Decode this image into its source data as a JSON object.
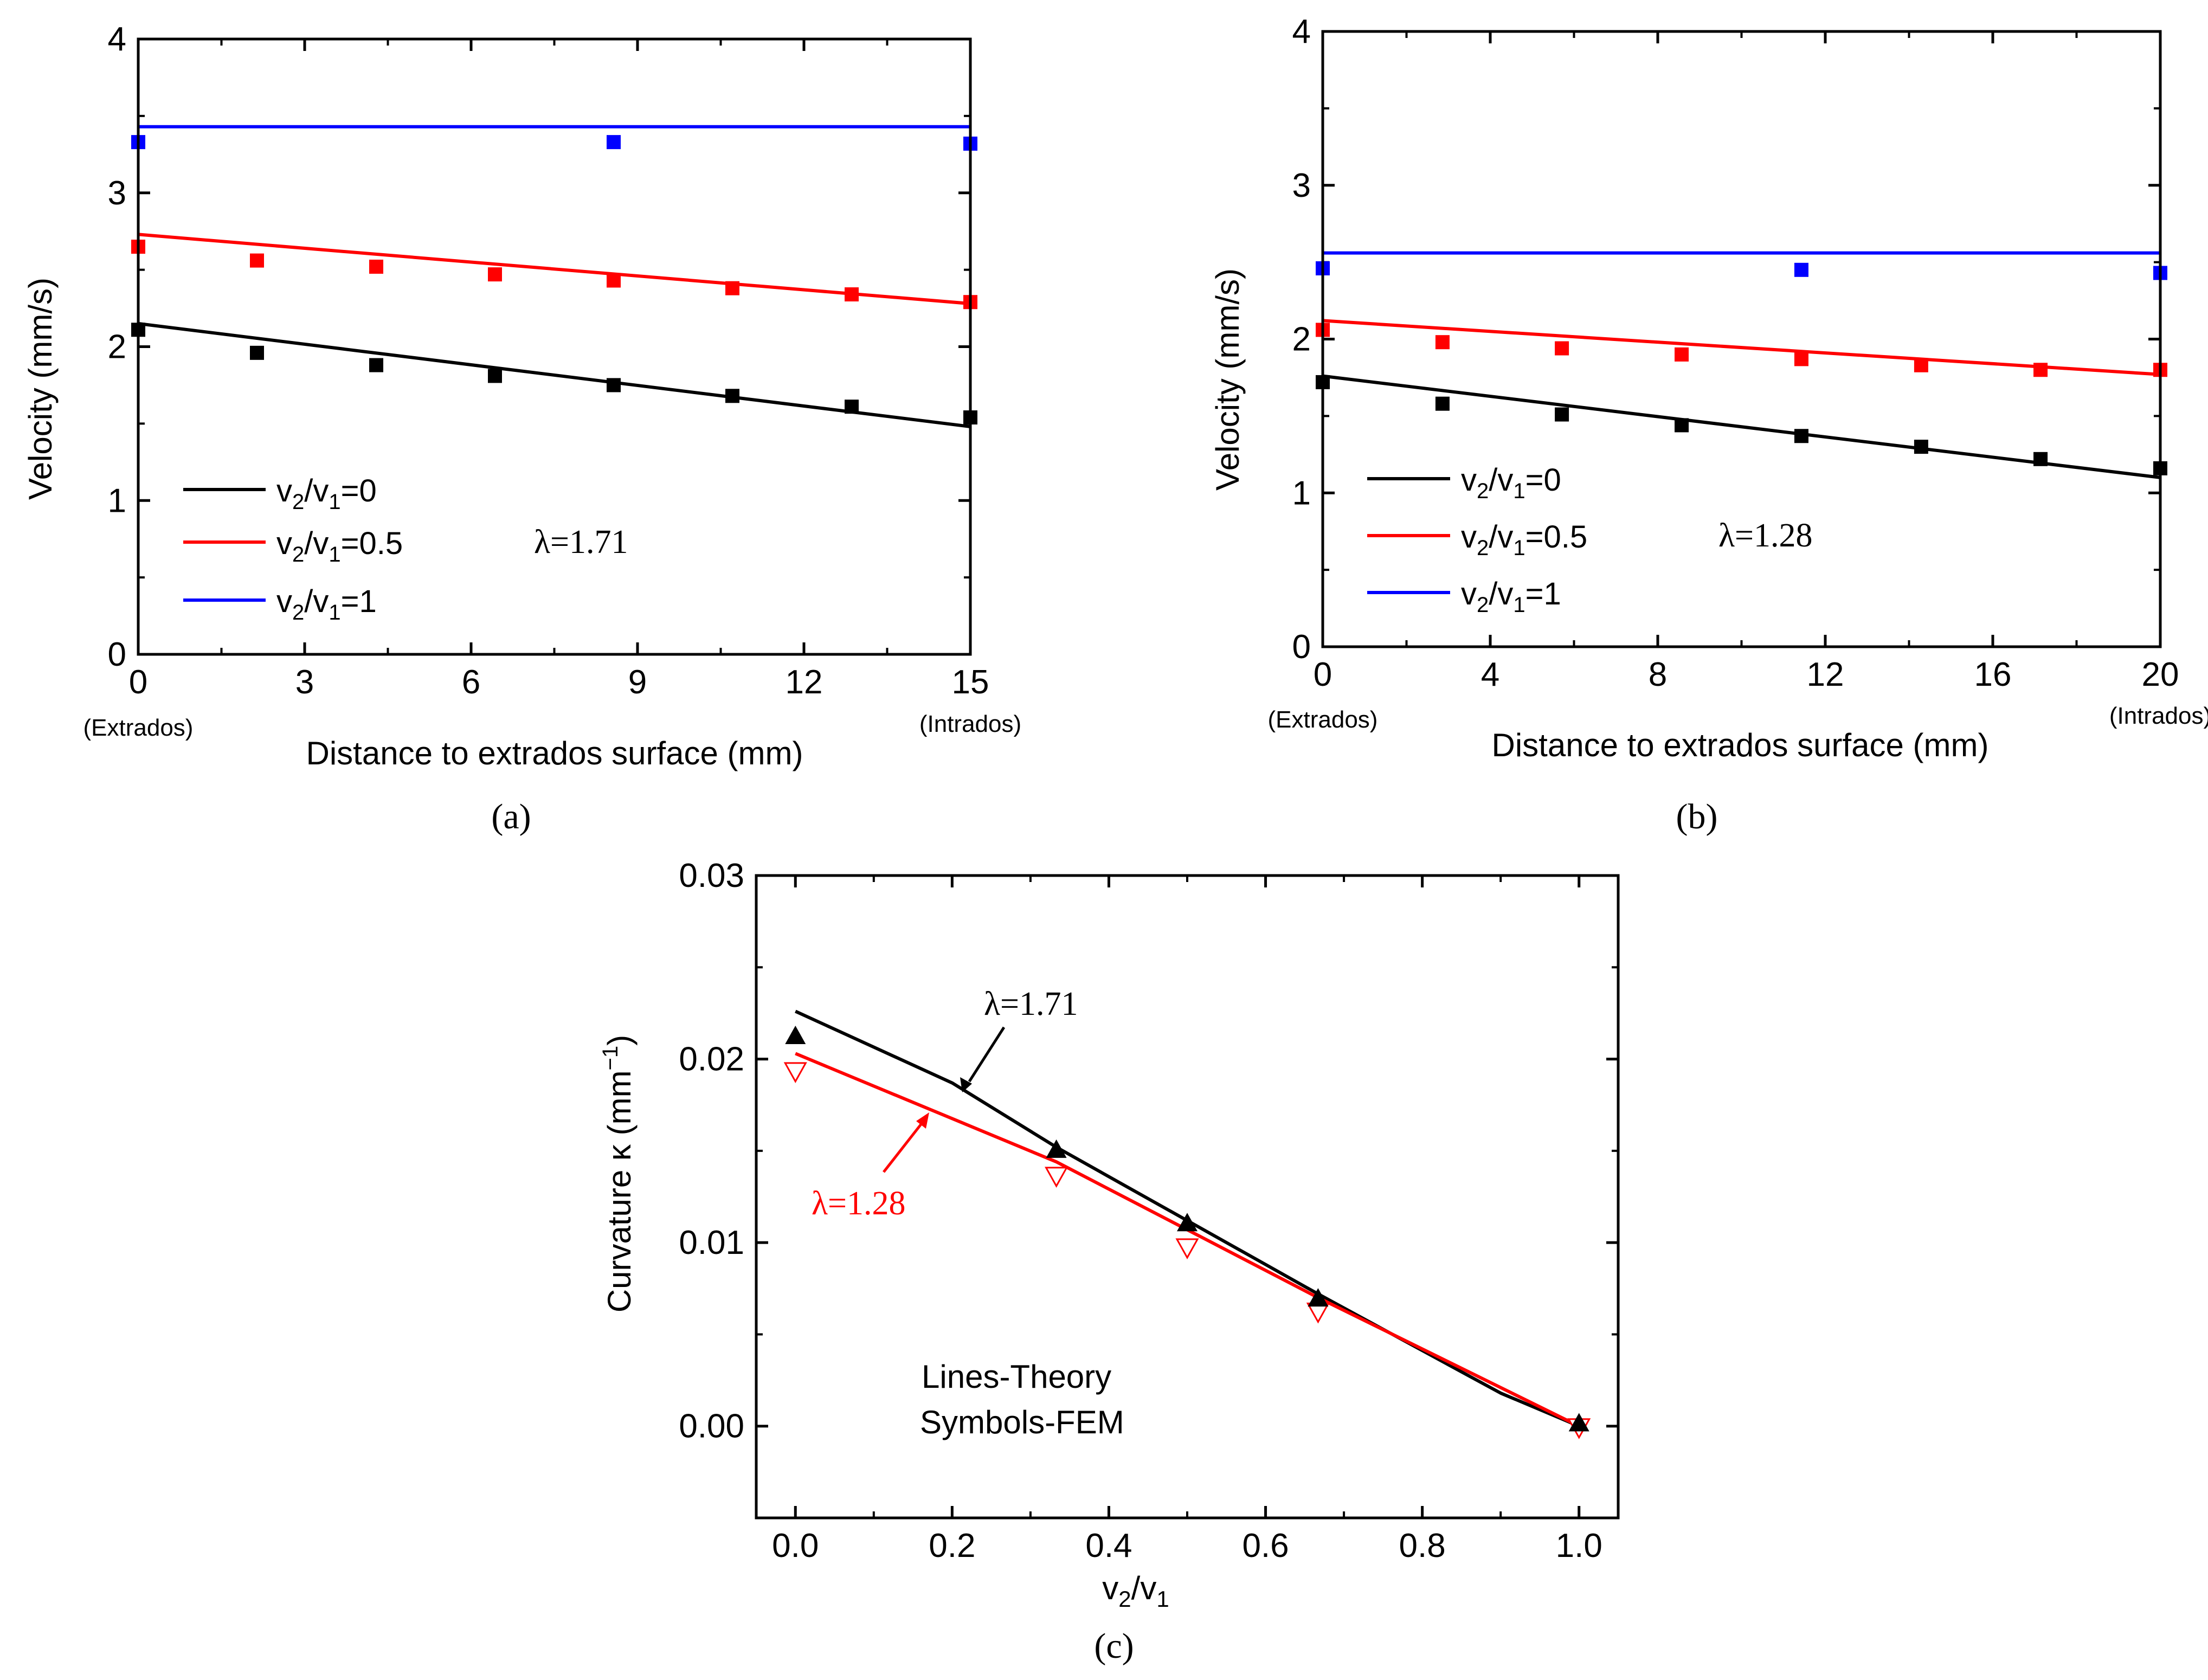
{
  "chart_data": [
    {
      "id": "a",
      "type": "line",
      "panel_label": "(a)",
      "xlabel": "Distance to extrados surface (mm)",
      "ylabel": "Velocity (mm/s)",
      "xlim": [
        0,
        15
      ],
      "ylim": [
        0,
        4
      ],
      "xticks": [
        0,
        3,
        6,
        9,
        12,
        15
      ],
      "yticks": [
        0,
        1,
        2,
        3,
        4
      ],
      "x_end_labels": [
        "(Extrados)",
        "(Intrados)"
      ],
      "annotation": "λ=1.71",
      "legend": [
        {
          "label": "v2/v1=0",
          "main": "v",
          "sub1": "2",
          "mid": "/v",
          "sub2": "1",
          "tail": "=0",
          "color": "#000000"
        },
        {
          "label": "v2/v1=0.5",
          "main": "v",
          "sub1": "2",
          "mid": "/v",
          "sub2": "1",
          "tail": "=0.5",
          "color": "#ff0000"
        },
        {
          "label": "v2/v1=1",
          "main": "v",
          "sub1": "2",
          "mid": "/v",
          "sub2": "1",
          "tail": "=1",
          "color": "#0000ff"
        }
      ],
      "series": [
        {
          "name": "v2/v1=0",
          "color": "#000000",
          "line": [
            [
              0,
              2.15
            ],
            [
              15,
              1.48
            ]
          ],
          "points": [
            [
              0,
              2.11
            ],
            [
              2.14,
              1.96
            ],
            [
              4.29,
              1.88
            ],
            [
              6.43,
              1.81
            ],
            [
              8.57,
              1.75
            ],
            [
              10.71,
              1.68
            ],
            [
              12.86,
              1.61
            ],
            [
              15,
              1.54
            ]
          ]
        },
        {
          "name": "v2/v1=0.5",
          "color": "#ff0000",
          "line": [
            [
              0,
              2.73
            ],
            [
              15,
              2.28
            ]
          ],
          "points": [
            [
              0,
              2.65
            ],
            [
              2.14,
              2.56
            ],
            [
              4.29,
              2.52
            ],
            [
              6.43,
              2.47
            ],
            [
              8.57,
              2.43
            ],
            [
              10.71,
              2.38
            ],
            [
              12.86,
              2.34
            ],
            [
              15,
              2.29
            ]
          ]
        },
        {
          "name": "v2/v1=1",
          "color": "#0000ff",
          "line": [
            [
              0,
              3.43
            ],
            [
              15,
              3.43
            ]
          ],
          "points": [
            [
              0,
              3.33
            ],
            [
              8.57,
              3.33
            ],
            [
              15,
              3.32
            ]
          ]
        }
      ]
    },
    {
      "id": "b",
      "type": "line",
      "panel_label": "(b)",
      "xlabel": "Distance to extrados surface (mm)",
      "ylabel": "Velocity (mm/s)",
      "xlim": [
        0,
        20
      ],
      "ylim": [
        0,
        4
      ],
      "xticks": [
        0,
        4,
        8,
        12,
        16,
        20
      ],
      "yticks": [
        0,
        1,
        2,
        3,
        4
      ],
      "x_end_labels": [
        "(Extrados)",
        "(Intrados)"
      ],
      "annotation": "λ=1.28",
      "legend": [
        {
          "label": "v2/v1=0",
          "main": "v",
          "sub1": "2",
          "mid": "/v",
          "sub2": "1",
          "tail": "=0",
          "color": "#000000"
        },
        {
          "label": "v2/v1=0.5",
          "main": "v",
          "sub1": "2",
          "mid": "/v",
          "sub2": "1",
          "tail": "=0.5",
          "color": "#ff0000"
        },
        {
          "label": "v2/v1=1",
          "main": "v",
          "sub1": "2",
          "mid": "/v",
          "sub2": "1",
          "tail": "=1",
          "color": "#0000ff"
        }
      ],
      "series": [
        {
          "name": "v2/v1=0",
          "color": "#000000",
          "line": [
            [
              0,
              1.76
            ],
            [
              20,
              1.1
            ]
          ],
          "points": [
            [
              0,
              1.72
            ],
            [
              2.86,
              1.58
            ],
            [
              5.71,
              1.51
            ],
            [
              8.57,
              1.44
            ],
            [
              11.43,
              1.37
            ],
            [
              14.29,
              1.3
            ],
            [
              17.14,
              1.22
            ],
            [
              20,
              1.16
            ]
          ]
        },
        {
          "name": "v2/v1=0.5",
          "color": "#ff0000",
          "line": [
            [
              0,
              2.12
            ],
            [
              20,
              1.77
            ]
          ],
          "points": [
            [
              0,
              2.06
            ],
            [
              2.86,
              1.98
            ],
            [
              5.71,
              1.94
            ],
            [
              8.57,
              1.9
            ],
            [
              11.43,
              1.87
            ],
            [
              14.29,
              1.83
            ],
            [
              17.14,
              1.8
            ],
            [
              20,
              1.8
            ]
          ]
        },
        {
          "name": "v2/v1=1",
          "color": "#0000ff",
          "line": [
            [
              0,
              2.56
            ],
            [
              20,
              2.56
            ]
          ],
          "points": [
            [
              0,
              2.46
            ],
            [
              11.43,
              2.45
            ],
            [
              20,
              2.43
            ]
          ]
        }
      ]
    },
    {
      "id": "c",
      "type": "line",
      "panel_label": "(c)",
      "xlabel": "v2/v1",
      "xlabel_parts": {
        "main": "v",
        "sub1": "2",
        "mid": "/v",
        "sub2": "1"
      },
      "ylabel": "Curvature κ (mm−1)",
      "ylabel_parts": {
        "main": "Curvature κ (mm",
        "sup": "−1",
        "tail": ")"
      },
      "xlim": [
        -0.05,
        1.05
      ],
      "ylim": [
        -0.005,
        0.03
      ],
      "xticks": [
        0.0,
        0.2,
        0.4,
        0.6,
        0.8,
        1.0
      ],
      "xtick_labels": [
        "0.0",
        "0.2",
        "0.4",
        "0.6",
        "0.8",
        "1.0"
      ],
      "yticks": [
        0.0,
        0.01,
        0.02,
        0.03
      ],
      "ytick_labels": [
        "0.00",
        "0.01",
        "0.02",
        "0.03"
      ],
      "notes": [
        "Lines-Theory",
        "Symbols-FEM"
      ],
      "annotations": [
        {
          "text": "λ=1.71",
          "color": "#000000"
        },
        {
          "text": "λ=1.28",
          "color": "#ff0000"
        }
      ],
      "series": [
        {
          "name": "λ=1.71",
          "color": "#000000",
          "marker": "filled-triangle",
          "line": [
            [
              0,
              0.0226
            ],
            [
              0.2,
              0.0187
            ],
            [
              0.333,
              0.0152
            ],
            [
              0.5,
              0.0112
            ],
            [
              0.667,
              0.0072
            ],
            [
              0.9,
              0.0018
            ],
            [
              1.0,
              0.0
            ]
          ],
          "points": [
            [
              0,
              0.0212
            ],
            [
              0.333,
              0.015
            ],
            [
              0.5,
              0.011
            ],
            [
              0.667,
              0.0069
            ],
            [
              1.0,
              0.0001
            ]
          ]
        },
        {
          "name": "λ=1.28",
          "color": "#ff0000",
          "marker": "open-down-triangle",
          "line": [
            [
              0,
              0.0203
            ],
            [
              0.333,
              0.0144
            ],
            [
              0.5,
              0.0107
            ],
            [
              0.667,
              0.007
            ],
            [
              1.0,
              0.0
            ]
          ],
          "points": [
            [
              0,
              0.0194
            ],
            [
              0.333,
              0.0137
            ],
            [
              0.5,
              0.0098
            ],
            [
              0.667,
              0.0063
            ],
            [
              1.0,
              0.0
            ]
          ]
        }
      ]
    }
  ]
}
